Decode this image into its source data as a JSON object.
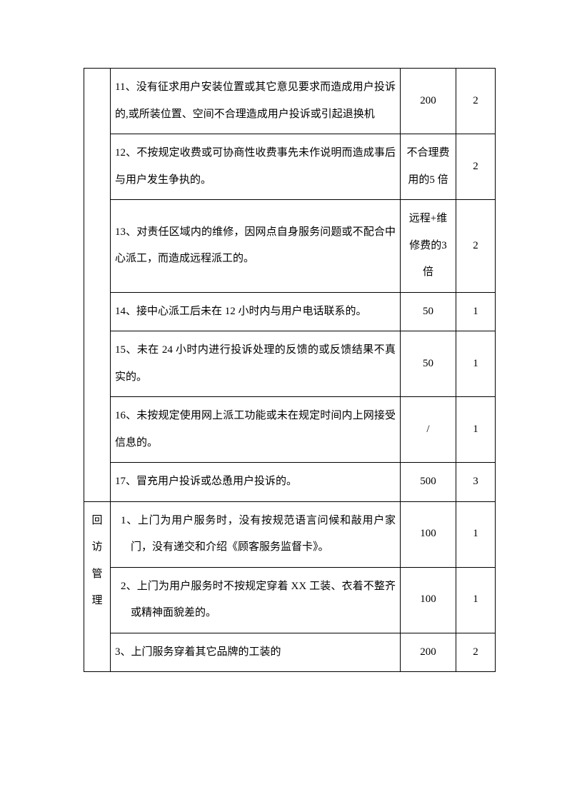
{
  "table": {
    "font_size": 15,
    "line_height": 2.5,
    "border_color": "#000000",
    "text_color": "#000000",
    "background_color": "#ffffff",
    "columns": {
      "category_width": 37,
      "amount_width": 78,
      "level_width": 55
    },
    "categories": {
      "first": "",
      "second": "回访管理"
    },
    "rows": [
      {
        "description": "11、没有征求用户安装位置或其它意见要求而造成用户投诉的,或所装位置、空间不合理造成用户投诉或引起退换机",
        "amount": "200",
        "level": "2"
      },
      {
        "description": "12、不按规定收费或可协商性收费事先未作说明而造成事后与用户发生争执的。",
        "amount": "不合理费用的5 倍",
        "level": "2"
      },
      {
        "description": "13、对责任区域内的维修，因网点自身服务问题或不配合中心派工，而造成远程派工的。",
        "amount": "远程+维修费的3 倍",
        "level": "2"
      },
      {
        "description": "14、接中心派工后未在 12 小时内与用户电话联系的。",
        "amount": "50",
        "level": "1"
      },
      {
        "description": "15、未在 24 小时内进行投诉处理的反馈的或反馈结果不真实的。",
        "amount": "50",
        "level": "1"
      },
      {
        "description": "16、未按规定使用网上派工功能或未在规定时间内上网接受信息的。",
        "amount": "/",
        "level": "1"
      },
      {
        "description": "17、冒充用户投诉或怂恿用户投诉的。",
        "amount": "500",
        "level": "3"
      },
      {
        "description": "1、上门为用户服务时，没有按规范语言问候和敲用户家门，没有递交和介绍《顾客服务监督卡》。",
        "amount": "100",
        "level": "1",
        "indent": true
      },
      {
        "description": "2、上门为用户服务时不按规定穿着 XX 工装、衣着不整齐或精神面貌差的。",
        "amount": "100",
        "level": "1",
        "indent": true
      },
      {
        "description": "3、上门服务穿着其它品牌的工装的",
        "amount": "200",
        "level": "2"
      }
    ]
  }
}
